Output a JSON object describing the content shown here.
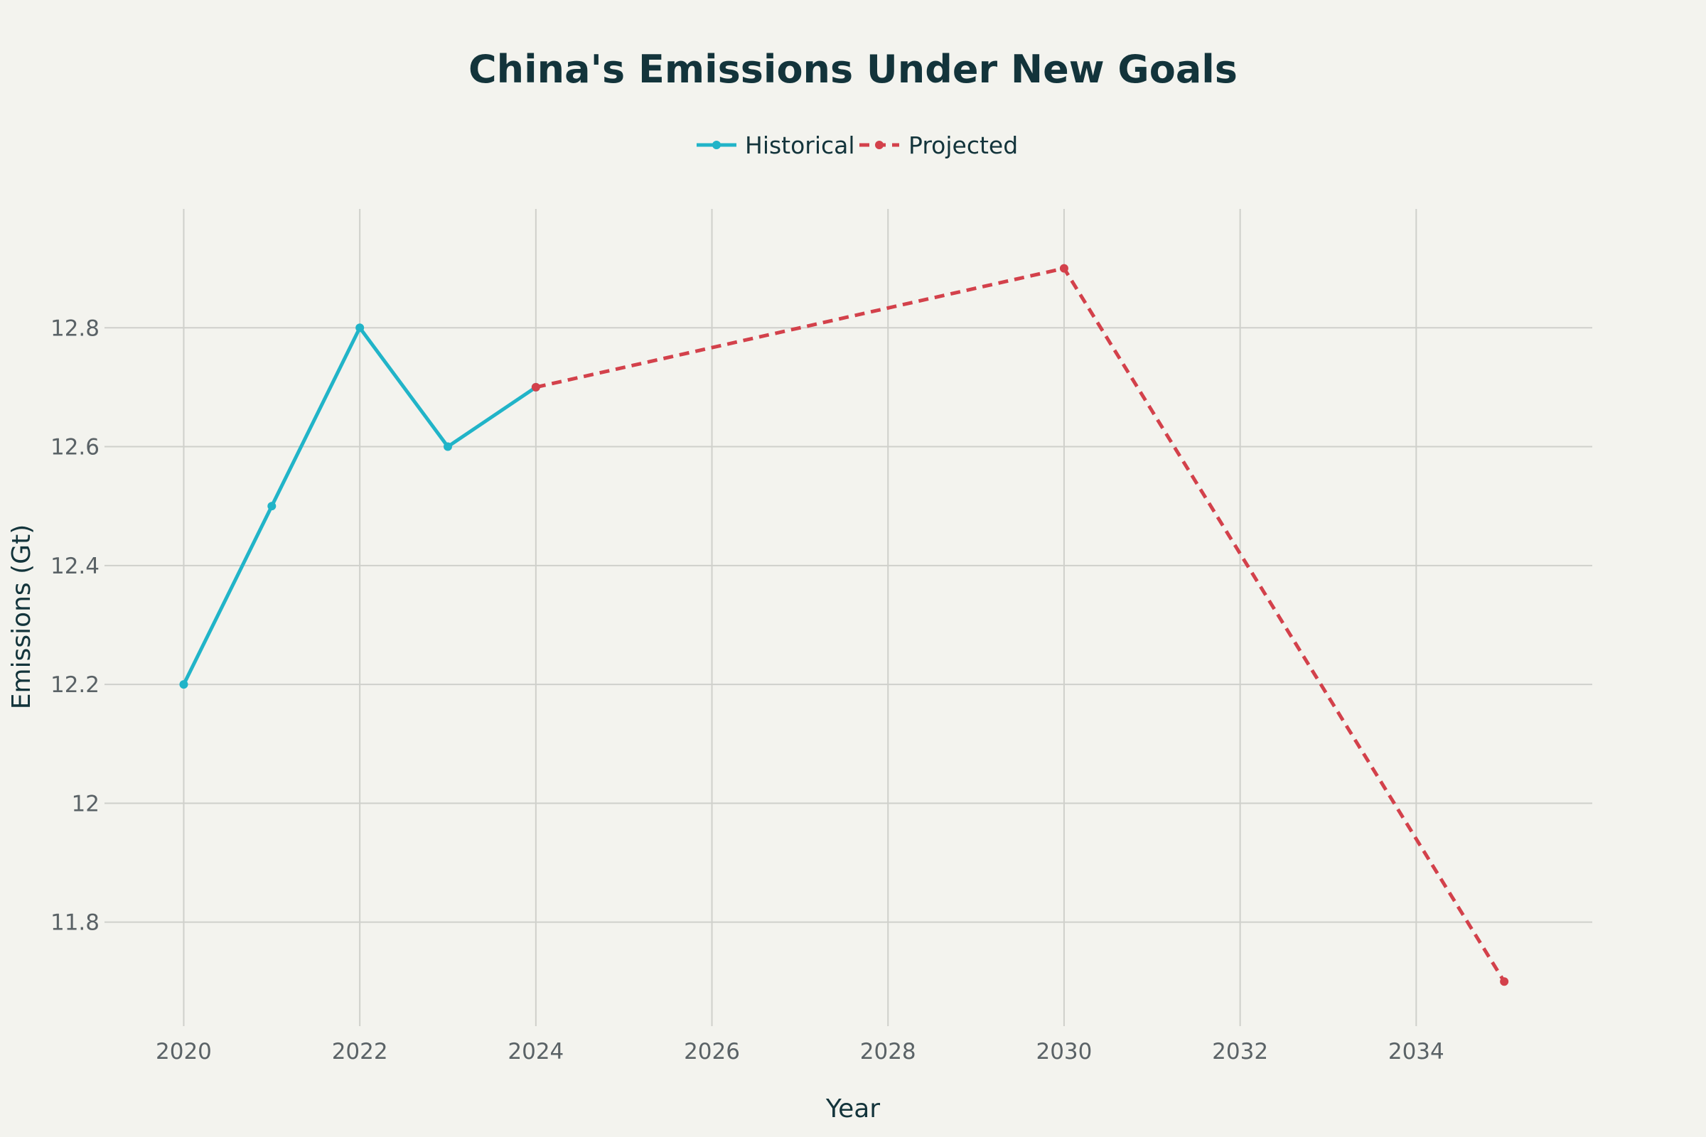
{
  "chart_data": {
    "type": "line",
    "title": "China's Emissions Under New Goals",
    "xlabel": "Year",
    "ylabel": "Emissions (Gt)",
    "xlim": [
      2019.1,
      2036.0
    ],
    "ylim": [
      11.625,
      13.0
    ],
    "x_ticks": [
      2020,
      2022,
      2024,
      2026,
      2028,
      2030,
      2032,
      2034
    ],
    "y_ticks": [
      11.8,
      12,
      12.2,
      12.4,
      12.6,
      12.8
    ],
    "x_tick_labels": [
      "2020",
      "2022",
      "2024",
      "2026",
      "2028",
      "2030",
      "2032",
      "2034"
    ],
    "y_tick_labels": [
      "11.8",
      "12",
      "12.2",
      "12.4",
      "12.6",
      "12.8"
    ],
    "grid": true,
    "legend_position": "top-center",
    "series": [
      {
        "name": "Historical",
        "color": "#21b4c8",
        "dash": "solid",
        "x": [
          2020,
          2021,
          2022,
          2023,
          2024
        ],
        "y": [
          12.2,
          12.5,
          12.8,
          12.6,
          12.7
        ]
      },
      {
        "name": "Projected",
        "color": "#d3414b",
        "dash": "dashed",
        "x": [
          2024,
          2030,
          2035
        ],
        "y": [
          12.7,
          12.9,
          11.7
        ]
      }
    ]
  }
}
